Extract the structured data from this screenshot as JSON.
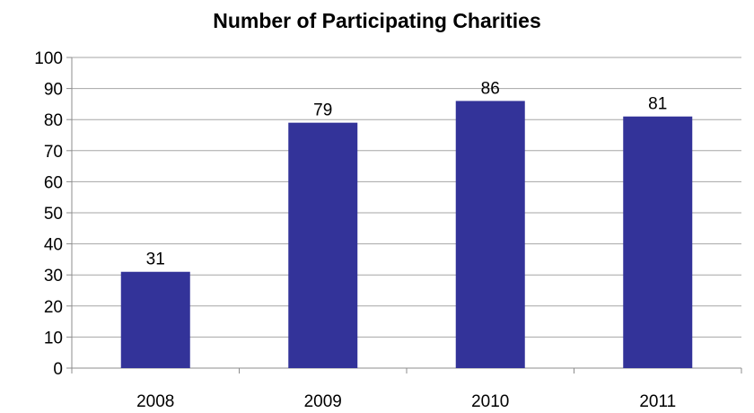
{
  "chart_data": {
    "type": "bar",
    "title": "Number of Participating Charities",
    "xlabel": "",
    "ylabel": "",
    "categories": [
      "2008",
      "2009",
      "2010",
      "2011"
    ],
    "series": [
      {
        "values": [
          31,
          79,
          86,
          81
        ]
      }
    ],
    "data_labels": [
      "31",
      "79",
      "86",
      "81"
    ],
    "ylim": [
      0,
      100
    ],
    "yticks": [
      0,
      10,
      20,
      30,
      40,
      50,
      60,
      70,
      80,
      90,
      100
    ],
    "ytick_labels": [
      "0",
      "10",
      "20",
      "30",
      "40",
      "50",
      "60",
      "70",
      "80",
      "90",
      "100"
    ],
    "grid": true,
    "legend": "none",
    "bar_color": "#333399",
    "grid_color": "#a6a6a6"
  }
}
